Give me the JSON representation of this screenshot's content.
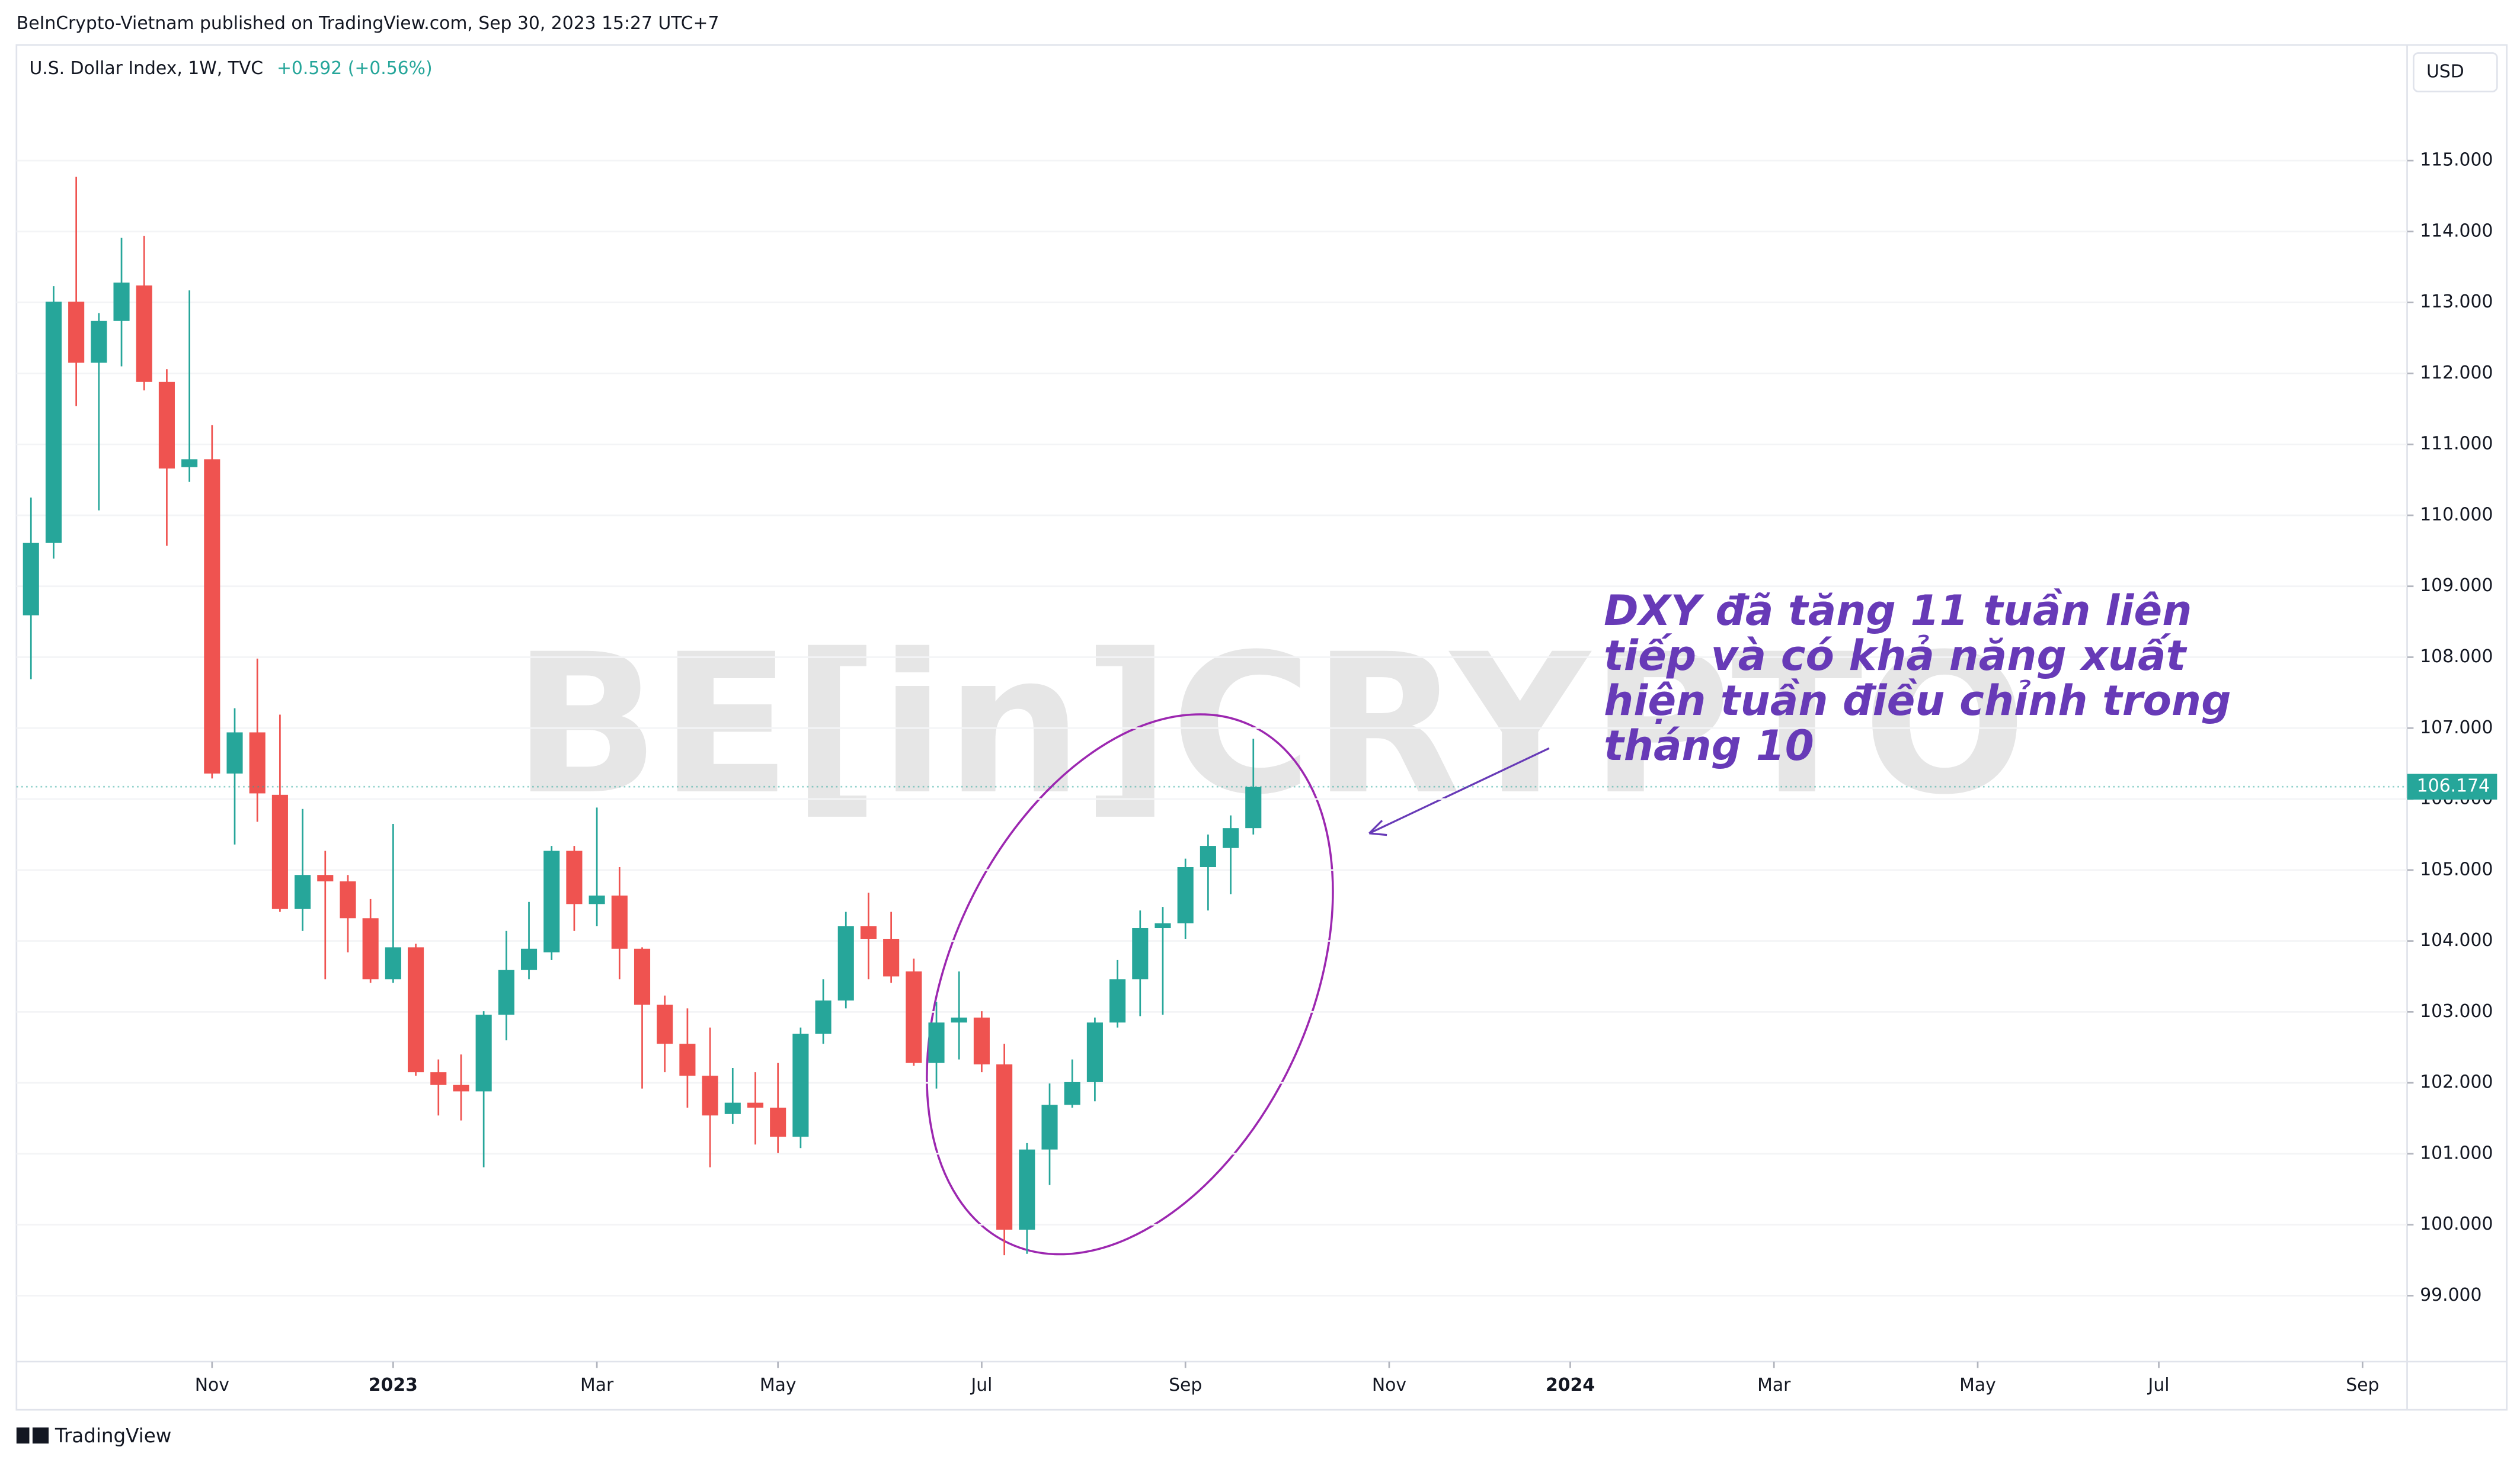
{
  "header": {
    "published": "BeInCrypto-Vietnam published on TradingView.com, Sep 30, 2023 15:27 UTC+7"
  },
  "footer": {
    "brand": "TradingView"
  },
  "chart_data": {
    "type": "candlestick",
    "title": "U.S. Dollar Index, 1W, TVC",
    "change": "+0.592 (+0.56%)",
    "currency": "USD",
    "watermark": "BE[in]CRYPTO",
    "annotation": [
      "DXY đã tăng 11 tuần liên",
      "tiếp và có khả năng xuất",
      "hiện tuần điều chỉnh trong",
      "tháng 10"
    ],
    "last_price": 106.174,
    "up_color": "#26a69a",
    "down_color": "#ef5350",
    "x": [
      0,
      1,
      2,
      3,
      4,
      5,
      6,
      7,
      8,
      9,
      10,
      11,
      12,
      13,
      14,
      15,
      16,
      17,
      18,
      19,
      20,
      21,
      22,
      23,
      24,
      25,
      26,
      27,
      28,
      29,
      30,
      31,
      32,
      33,
      34,
      35,
      36,
      37,
      38,
      39,
      40,
      41,
      42,
      43,
      44,
      45,
      46,
      47,
      48,
      49,
      50,
      51,
      52,
      53,
      54
    ],
    "open": [
      108.59,
      109.61,
      113.01,
      112.15,
      112.74,
      113.24,
      111.88,
      110.68,
      110.79,
      106.36,
      106.94,
      106.06,
      104.45,
      104.93,
      104.84,
      104.32,
      103.46,
      103.91,
      102.15,
      101.97,
      101.88,
      102.96,
      103.59,
      103.84,
      105.27,
      104.52,
      104.64,
      103.89,
      103.1,
      102.55,
      102.1,
      101.56,
      101.72,
      101.65,
      101.24,
      102.69,
      103.16,
      104.21,
      104.03,
      103.57,
      102.28,
      102.85,
      102.92,
      102.26,
      99.93,
      101.06,
      101.69,
      102.01,
      102.85,
      103.46,
      104.18,
      104.25,
      105.04,
      105.31,
      105.59
    ],
    "high": [
      110.25,
      113.23,
      114.77,
      112.85,
      113.91,
      113.94,
      112.06,
      113.17,
      111.27,
      107.28,
      107.98,
      107.19,
      105.86,
      105.27,
      104.93,
      104.59,
      105.65,
      103.96,
      102.33,
      102.4,
      103.01,
      104.14,
      104.55,
      105.34,
      105.34,
      105.88,
      105.04,
      103.91,
      103.23,
      103.05,
      102.78,
      102.21,
      102.15,
      102.28,
      102.78,
      103.46,
      104.41,
      104.68,
      104.41,
      103.75,
      103.14,
      103.57,
      103.01,
      102.55,
      101.15,
      101.99,
      102.33,
      102.92,
      103.73,
      104.43,
      104.48,
      105.16,
      105.5,
      105.77,
      106.85
    ],
    "low": [
      107.69,
      109.39,
      111.54,
      110.07,
      112.1,
      111.76,
      109.57,
      110.47,
      106.29,
      105.36,
      105.68,
      104.41,
      104.14,
      103.46,
      103.84,
      103.41,
      103.41,
      102.1,
      101.54,
      101.47,
      100.81,
      102.6,
      103.46,
      103.73,
      104.14,
      104.21,
      103.46,
      101.92,
      102.15,
      101.65,
      100.81,
      101.42,
      101.13,
      101.01,
      101.08,
      102.55,
      103.05,
      103.46,
      103.41,
      102.24,
      101.92,
      102.33,
      102.15,
      99.57,
      99.59,
      100.56,
      101.65,
      101.74,
      102.78,
      102.94,
      102.96,
      104.03,
      104.43,
      104.66,
      105.5
    ],
    "close": [
      109.61,
      113.01,
      112.15,
      112.74,
      113.28,
      111.88,
      110.66,
      110.79,
      106.36,
      106.94,
      106.08,
      104.45,
      104.93,
      104.84,
      104.32,
      103.46,
      103.91,
      102.15,
      101.97,
      101.88,
      102.96,
      103.59,
      103.89,
      105.27,
      104.52,
      104.64,
      103.89,
      103.1,
      102.55,
      102.1,
      101.54,
      101.72,
      101.65,
      101.24,
      102.69,
      103.16,
      104.21,
      104.03,
      103.5,
      102.28,
      102.85,
      102.92,
      102.26,
      99.93,
      101.06,
      101.69,
      102.01,
      102.85,
      103.46,
      104.18,
      104.25,
      105.04,
      105.34,
      105.59,
      106.17
    ],
    "xlim": [
      -0.64,
      104.97
    ],
    "xticks": [
      {
        "value": 8,
        "label": "Nov"
      },
      {
        "value": 16,
        "label": "2023"
      },
      {
        "value": 25,
        "label": "Mar"
      },
      {
        "value": 33,
        "label": "May"
      },
      {
        "value": 42,
        "label": "Jul"
      },
      {
        "value": 51,
        "label": "Sep"
      },
      {
        "value": 60,
        "label": "Nov"
      },
      {
        "value": 68,
        "label": "2024"
      },
      {
        "value": 77,
        "label": "Mar"
      },
      {
        "value": 86,
        "label": "May"
      },
      {
        "value": 94,
        "label": "Jul"
      },
      {
        "value": 103,
        "label": "Sep"
      }
    ],
    "ylim": [
      98.07,
      116.63
    ],
    "yticks": [
      {
        "value": 99,
        "label": "99.000"
      },
      {
        "value": 100,
        "label": "100.000"
      },
      {
        "value": 101,
        "label": "101.000"
      },
      {
        "value": 102,
        "label": "102.000"
      },
      {
        "value": 103,
        "label": "103.000"
      },
      {
        "value": 104,
        "label": "104.000"
      },
      {
        "value": 105,
        "label": "105.000"
      },
      {
        "value": 106,
        "label": "106.000"
      },
      {
        "value": 107,
        "label": "107.000"
      },
      {
        "value": 108,
        "label": "108.000"
      },
      {
        "value": 109,
        "label": "109.000"
      },
      {
        "value": 110,
        "label": "110.000"
      },
      {
        "value": 111,
        "label": "111.000"
      },
      {
        "value": 112,
        "label": "112.000"
      },
      {
        "value": 113,
        "label": "113.000"
      },
      {
        "value": 114,
        "label": "114.000"
      },
      {
        "value": 115,
        "label": "115.000"
      }
    ]
  }
}
